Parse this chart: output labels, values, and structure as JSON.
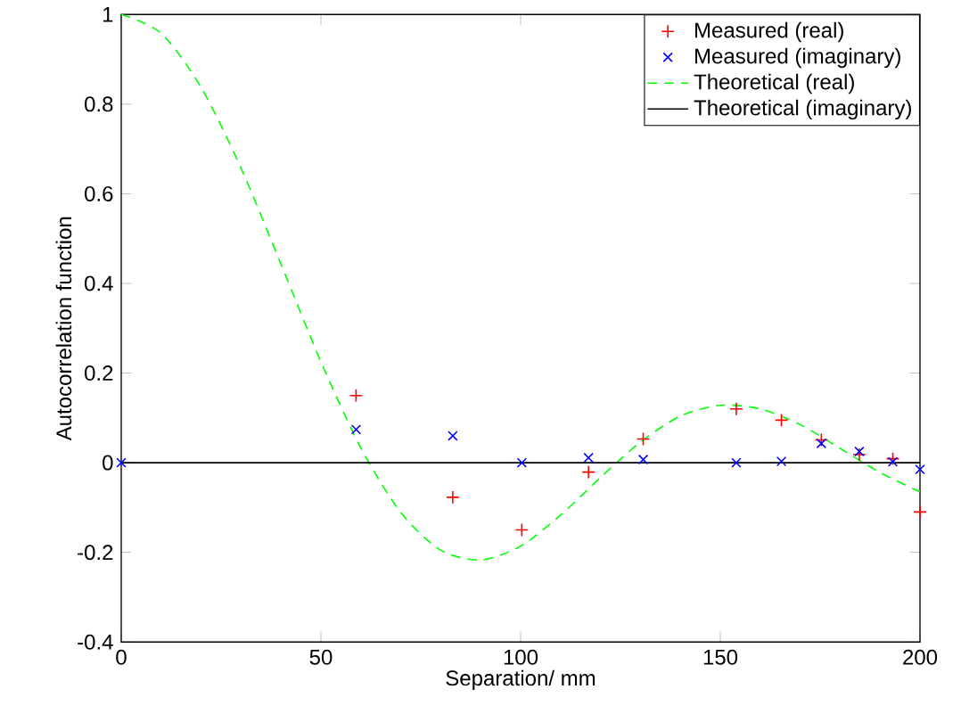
{
  "chart_data": {
    "type": "scatter",
    "xlabel": "Separation/ mm",
    "ylabel": "Autocorrelation function",
    "xlim": [
      0,
      200
    ],
    "ylim": [
      -0.4,
      1
    ],
    "xticks": [
      0,
      50,
      100,
      150,
      200
    ],
    "yticks": [
      -0.4,
      -0.2,
      0,
      0.2,
      0.4,
      0.6,
      0.8,
      1
    ],
    "grid": false,
    "legend": "top right",
    "series": [
      {
        "name": "Measured (real)",
        "marker": "plus",
        "color": "#ff0000",
        "x": [
          58.8,
          83,
          100.3,
          117,
          130.7,
          154,
          165.3,
          175.3,
          184.8,
          193.2,
          200
        ],
        "values": [
          0.15,
          -0.077,
          -0.15,
          -0.021,
          0.053,
          0.12,
          0.095,
          0.051,
          0.018,
          0.009,
          -0.11
        ]
      },
      {
        "name": "Measured (imaginary)",
        "marker": "cross",
        "color": "#0000ff",
        "x": [
          0,
          58.8,
          83,
          100.3,
          117,
          130.7,
          154,
          165.3,
          175.3,
          184.8,
          193.2,
          200
        ],
        "values": [
          0,
          0.074,
          0.06,
          0,
          0.011,
          0.007,
          0,
          0.003,
          0.043,
          0.025,
          0.002,
          -0.015
        ]
      },
      {
        "name": "Theoretical (real)",
        "type": "line",
        "line_style": "dashed",
        "color": "#00ff00",
        "x": [
          0,
          10,
          20,
          30,
          40,
          50,
          60,
          70,
          80,
          90,
          100,
          110,
          120,
          130,
          140,
          150,
          160,
          170,
          180,
          190,
          200
        ],
        "values": [
          1,
          0.958,
          0.837,
          0.657,
          0.443,
          0.225,
          0.033,
          -0.111,
          -0.195,
          -0.217,
          -0.186,
          -0.117,
          -0.033,
          0.046,
          0.104,
          0.128,
          0.12,
          0.085,
          0.032,
          -0.022,
          -0.065
        ]
      },
      {
        "name": "Theoretical (imaginary)",
        "type": "line",
        "line_style": "solid",
        "color": "#000000",
        "x": [
          0,
          200
        ],
        "values": [
          0,
          0
        ]
      }
    ]
  }
}
